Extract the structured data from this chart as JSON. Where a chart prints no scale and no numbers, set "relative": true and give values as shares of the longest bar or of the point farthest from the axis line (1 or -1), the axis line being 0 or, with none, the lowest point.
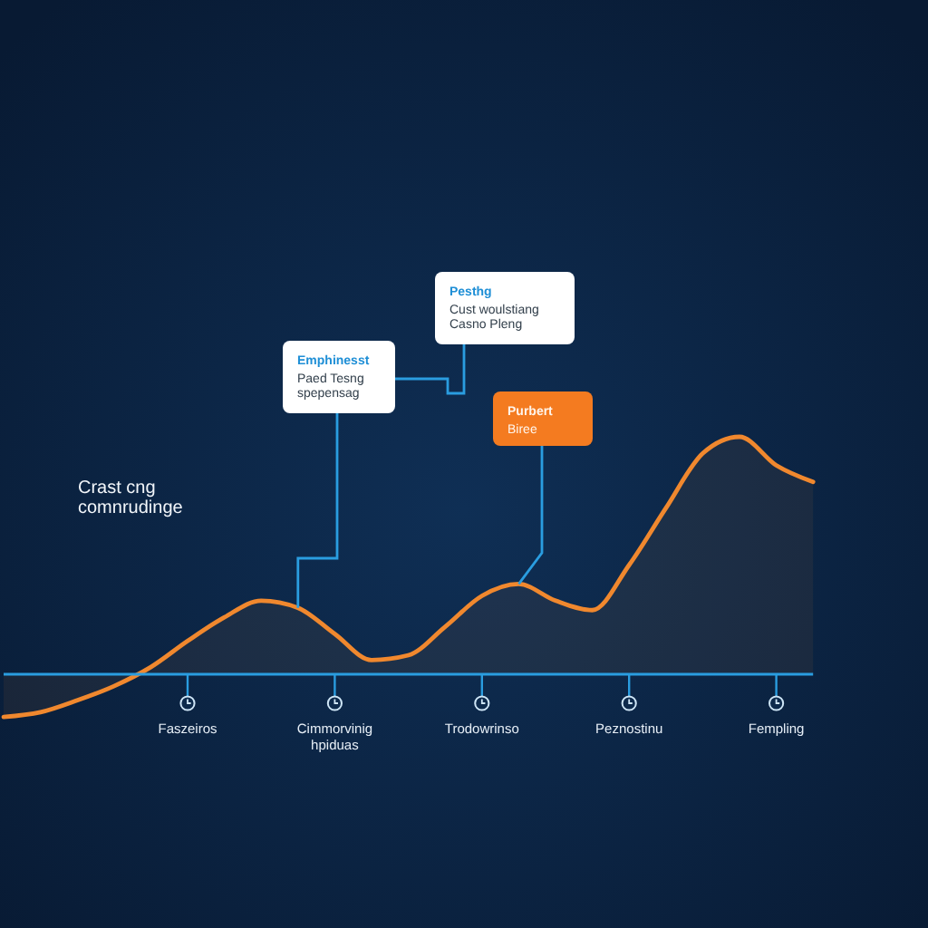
{
  "chart_data": {
    "type": "area",
    "relative": true,
    "categories": [
      null,
      null,
      null,
      null,
      null,
      "Faszeiros",
      null,
      null,
      null,
      "Cimmorvinig\nhpiduas",
      null,
      null,
      null,
      "Trodowrinso",
      null,
      null,
      null,
      "Peznostinu",
      null,
      null,
      null,
      "Fempling",
      null
    ],
    "series": [
      {
        "color": "#f0882e",
        "values": [
          -0.18,
          -0.16,
          -0.11,
          -0.05,
          0.03,
          0.14,
          0.24,
          0.31,
          0.28,
          0.17,
          0.06,
          0.08,
          0.2,
          0.33,
          0.38,
          0.31,
          0.27,
          0.46,
          0.7,
          0.93,
          1.0,
          0.88,
          0.81
        ]
      }
    ],
    "ref_lines": [
      {
        "axis": "y",
        "value": 0,
        "color": "#2a9de0"
      }
    ],
    "annotations": [
      "Emphinesst\nPaed Tesng\nspepensag",
      "Pesthg\nCust woulstiang\nCasno Pleng",
      "Purbert\nBiree",
      "Crast cng\ncomnrudinge"
    ],
    "grid": false
  }
}
